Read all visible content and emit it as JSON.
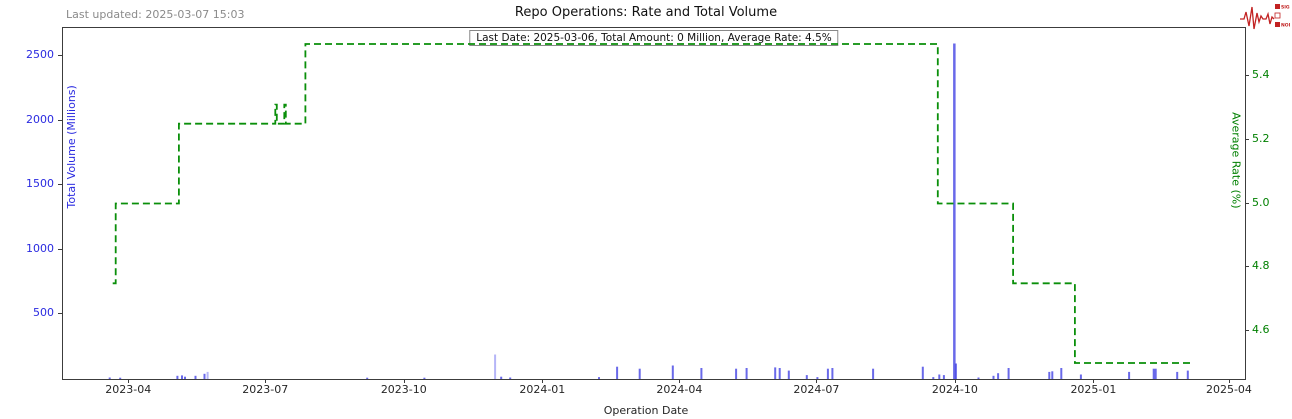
{
  "header": {
    "last_updated": "Last updated: 2025-03-07 15:03",
    "title": "Repo Operations: Rate and Total Volume"
  },
  "logo": {
    "text_top": "SIGNAL",
    "text_bottom": "NOISE",
    "color": "#c22222"
  },
  "annotation": "Last Date: 2025-03-06, Total Amount: 0 Million, Average Rate: 4.5%",
  "chart_data": {
    "type": "bar+step-line",
    "title": "Repo Operations: Rate and Total Volume",
    "xlabel": "Operation Date",
    "x_domain": [
      "2023-02-16",
      "2025-04-11"
    ],
    "x_ticks": [
      "2023-04",
      "2023-07",
      "2023-10",
      "2024-01",
      "2024-04",
      "2024-07",
      "2024-10",
      "2025-01",
      "2025-04"
    ],
    "grid": false,
    "volume_axis": {
      "label": "Total Volume (Millions)",
      "color": "#2a2ae0",
      "bar_color": "rgba(55,55,225,0.75)",
      "bar_color_light": "rgba(120,120,240,0.55)",
      "ticks": [
        500,
        1000,
        1500,
        2000,
        2500
      ],
      "ylim": [
        0,
        2720
      ]
    },
    "rate_axis": {
      "label": "Average Rate (%)",
      "color": "#008000",
      "line_color": "#0a8f0a",
      "ticks": [
        4.6,
        4.8,
        5.0,
        5.2,
        5.4
      ],
      "ylim": [
        4.45,
        5.55
      ],
      "legend_position": "none",
      "line_style": "dashed-step"
    },
    "rate_steps": [
      [
        "2023-03-21",
        4.75
      ],
      [
        "2023-03-23",
        5.0
      ],
      [
        "2023-05-04",
        5.25
      ],
      [
        "2023-07-07",
        5.31
      ],
      [
        "2023-07-08",
        5.25
      ],
      [
        "2023-07-13",
        5.31
      ],
      [
        "2023-07-14",
        5.25
      ],
      [
        "2023-07-27",
        5.5
      ],
      [
        "2024-09-19",
        5.0
      ],
      [
        "2024-11-08",
        4.75
      ],
      [
        "2024-12-19",
        4.5
      ],
      [
        "2025-03-06",
        4.5
      ]
    ],
    "volume_bars": [
      {
        "date": "2023-03-19",
        "value": 12
      },
      {
        "date": "2023-03-26",
        "value": 10
      },
      {
        "date": "2023-05-03",
        "value": 25
      },
      {
        "date": "2023-05-06",
        "value": 28
      },
      {
        "date": "2023-05-08",
        "value": 18
      },
      {
        "date": "2023-05-15",
        "value": 25
      },
      {
        "date": "2023-05-21",
        "value": 40
      },
      {
        "date": "2023-05-23",
        "value": 55,
        "light": true
      },
      {
        "date": "2023-09-06",
        "value": 10
      },
      {
        "date": "2023-10-14",
        "value": 10
      },
      {
        "date": "2023-11-30",
        "value": 190,
        "light": true
      },
      {
        "date": "2023-12-04",
        "value": 18
      },
      {
        "date": "2023-12-10",
        "value": 12
      },
      {
        "date": "2024-02-07",
        "value": 15
      },
      {
        "date": "2024-02-19",
        "value": 95
      },
      {
        "date": "2024-03-05",
        "value": 80
      },
      {
        "date": "2024-03-27",
        "value": 105
      },
      {
        "date": "2024-04-15",
        "value": 85
      },
      {
        "date": "2024-05-08",
        "value": 80
      },
      {
        "date": "2024-05-15",
        "value": 85
      },
      {
        "date": "2024-06-03",
        "value": 90
      },
      {
        "date": "2024-06-06",
        "value": 85
      },
      {
        "date": "2024-06-12",
        "value": 65
      },
      {
        "date": "2024-06-24",
        "value": 30
      },
      {
        "date": "2024-07-01",
        "value": 15
      },
      {
        "date": "2024-07-08",
        "value": 80
      },
      {
        "date": "2024-07-11",
        "value": 85
      },
      {
        "date": "2024-08-07",
        "value": 80
      },
      {
        "date": "2024-09-09",
        "value": 95
      },
      {
        "date": "2024-09-16",
        "value": 15
      },
      {
        "date": "2024-09-20",
        "value": 35
      },
      {
        "date": "2024-09-23",
        "value": 30
      },
      {
        "date": "2024-09-30",
        "value": 2600,
        "w": 2.5
      },
      {
        "date": "2024-10-01",
        "value": 120
      },
      {
        "date": "2024-10-16",
        "value": 12
      },
      {
        "date": "2024-10-26",
        "value": 25
      },
      {
        "date": "2024-10-29",
        "value": 45
      },
      {
        "date": "2024-11-05",
        "value": 85
      },
      {
        "date": "2024-12-02",
        "value": 55
      },
      {
        "date": "2024-12-04",
        "value": 60
      },
      {
        "date": "2024-12-10",
        "value": 85
      },
      {
        "date": "2024-12-23",
        "value": 35
      },
      {
        "date": "2025-01-24",
        "value": 55
      },
      {
        "date": "2025-02-10",
        "value": 80,
        "w": 4
      },
      {
        "date": "2025-02-25",
        "value": 55
      },
      {
        "date": "2025-03-04",
        "value": 65
      }
    ],
    "last_point": {
      "date": "2025-03-06",
      "total_amount_millions": 0,
      "average_rate_pct": 4.5
    }
  }
}
